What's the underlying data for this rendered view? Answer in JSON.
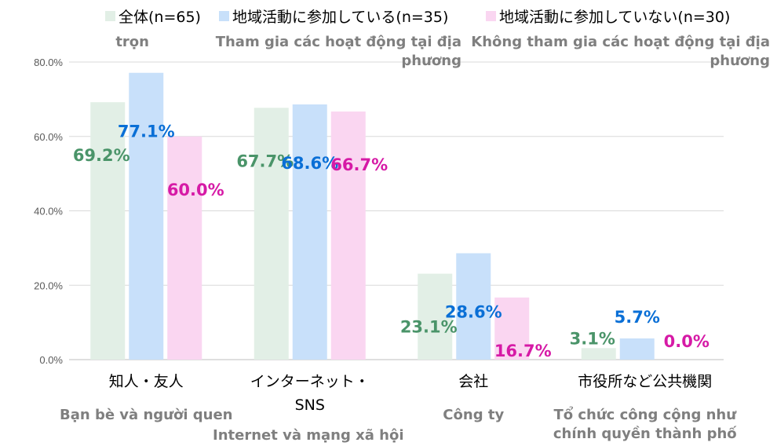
{
  "colors": {
    "all_fill": "#e2efe6",
    "all_label": "#4a9469",
    "participating_fill": "#c8e0fa",
    "participating_label": "#0a6fd6",
    "not_participating_fill": "#fad6f1",
    "not_participating_label": "#d61aa6",
    "gridline": "#d9d9d9",
    "axis": "#bfbfbf"
  },
  "legend": [
    {
      "label": "全体(n=65)",
      "sublabel": [
        "trọn"
      ]
    },
    {
      "label": "地域活動に参加している(n=35)",
      "sublabel": [
        "Tham gia các hoạt động tại địa",
        "phương"
      ]
    },
    {
      "label": "地域活動に参加していない(n=30)",
      "sublabel": [
        "Không tham gia các hoạt động tại địa",
        "phương"
      ]
    }
  ],
  "chart_data": {
    "type": "bar",
    "ylim": [
      0,
      80
    ],
    "yticks": [
      "0.0%",
      "20.0%",
      "40.0%",
      "60.0%",
      "80.0%"
    ],
    "grid": true,
    "legend_position": "top",
    "categories": [
      {
        "label": [
          "知人・友人"
        ],
        "sublabel": [
          "Bạn bè và người quen"
        ]
      },
      {
        "label": [
          "インターネット・",
          "SNS"
        ],
        "sublabel": [
          "Internet và mạng xã hội"
        ]
      },
      {
        "label": [
          "会社"
        ],
        "sublabel": [
          "Công ty"
        ]
      },
      {
        "label": [
          "市役所など公共機関"
        ],
        "sublabel": [
          "Tổ chức công cộng như",
          "chính quyền thành phố"
        ]
      }
    ],
    "series": [
      {
        "name": "全体(n=65)",
        "values": [
          69.2,
          67.7,
          23.1,
          3.1
        ],
        "labels": [
          "69.2%",
          "67.7%",
          "23.1%",
          "3.1%"
        ]
      },
      {
        "name": "地域活動に参加している(n=35)",
        "values": [
          77.1,
          68.6,
          28.6,
          5.7
        ],
        "labels": [
          "77.1%",
          "68.6%",
          "28.6%",
          "5.7%"
        ]
      },
      {
        "name": "地域活動に参加していない(n=30)",
        "values": [
          60.0,
          66.7,
          16.7,
          0.0
        ],
        "labels": [
          "60.0%",
          "66.7%",
          "16.7%",
          "0.0%"
        ]
      }
    ]
  }
}
